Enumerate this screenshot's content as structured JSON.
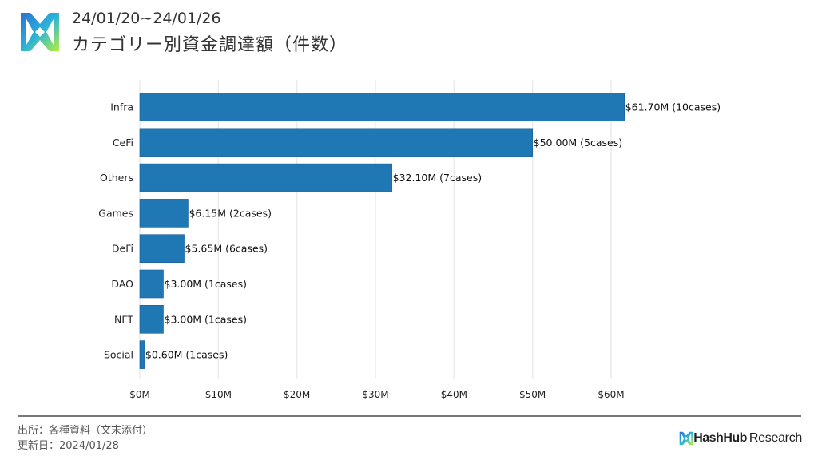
{
  "header": {
    "date_range": "24/01/20~24/01/26",
    "title": "カテゴリー別資金調達額（件数）"
  },
  "chart_data": {
    "type": "bar",
    "orientation": "horizontal",
    "categories": [
      "Infra",
      "CeFi",
      "Others",
      "Games",
      "DeFi",
      "DAO",
      "NFT",
      "Social"
    ],
    "values": [
      61.7,
      50.0,
      32.1,
      6.15,
      5.65,
      3.0,
      3.0,
      0.6
    ],
    "cases": [
      10,
      5,
      7,
      2,
      6,
      1,
      1,
      1
    ],
    "labels": [
      "$61.70M (10cases)",
      "$50.00M (5cases)",
      "$32.10M (7cases)",
      "$6.15M (2cases)",
      "$5.65M (6cases)",
      "$3.00M (1cases)",
      "$3.00M (1cases)",
      "$0.60M (1cases)"
    ],
    "xticks": [
      "$0M",
      "$10M",
      "$20M",
      "$30M",
      "$40M",
      "$50M",
      "$60M"
    ],
    "xlim": [
      0,
      60
    ],
    "unit": "$M",
    "grid": true,
    "bar_color": "#1f77b4"
  },
  "footer": {
    "source": "出所：各種資料（文末添付）",
    "updated": "更新日：2024/01/28",
    "brand_bold": "HashHub",
    "brand_light": "Research"
  }
}
